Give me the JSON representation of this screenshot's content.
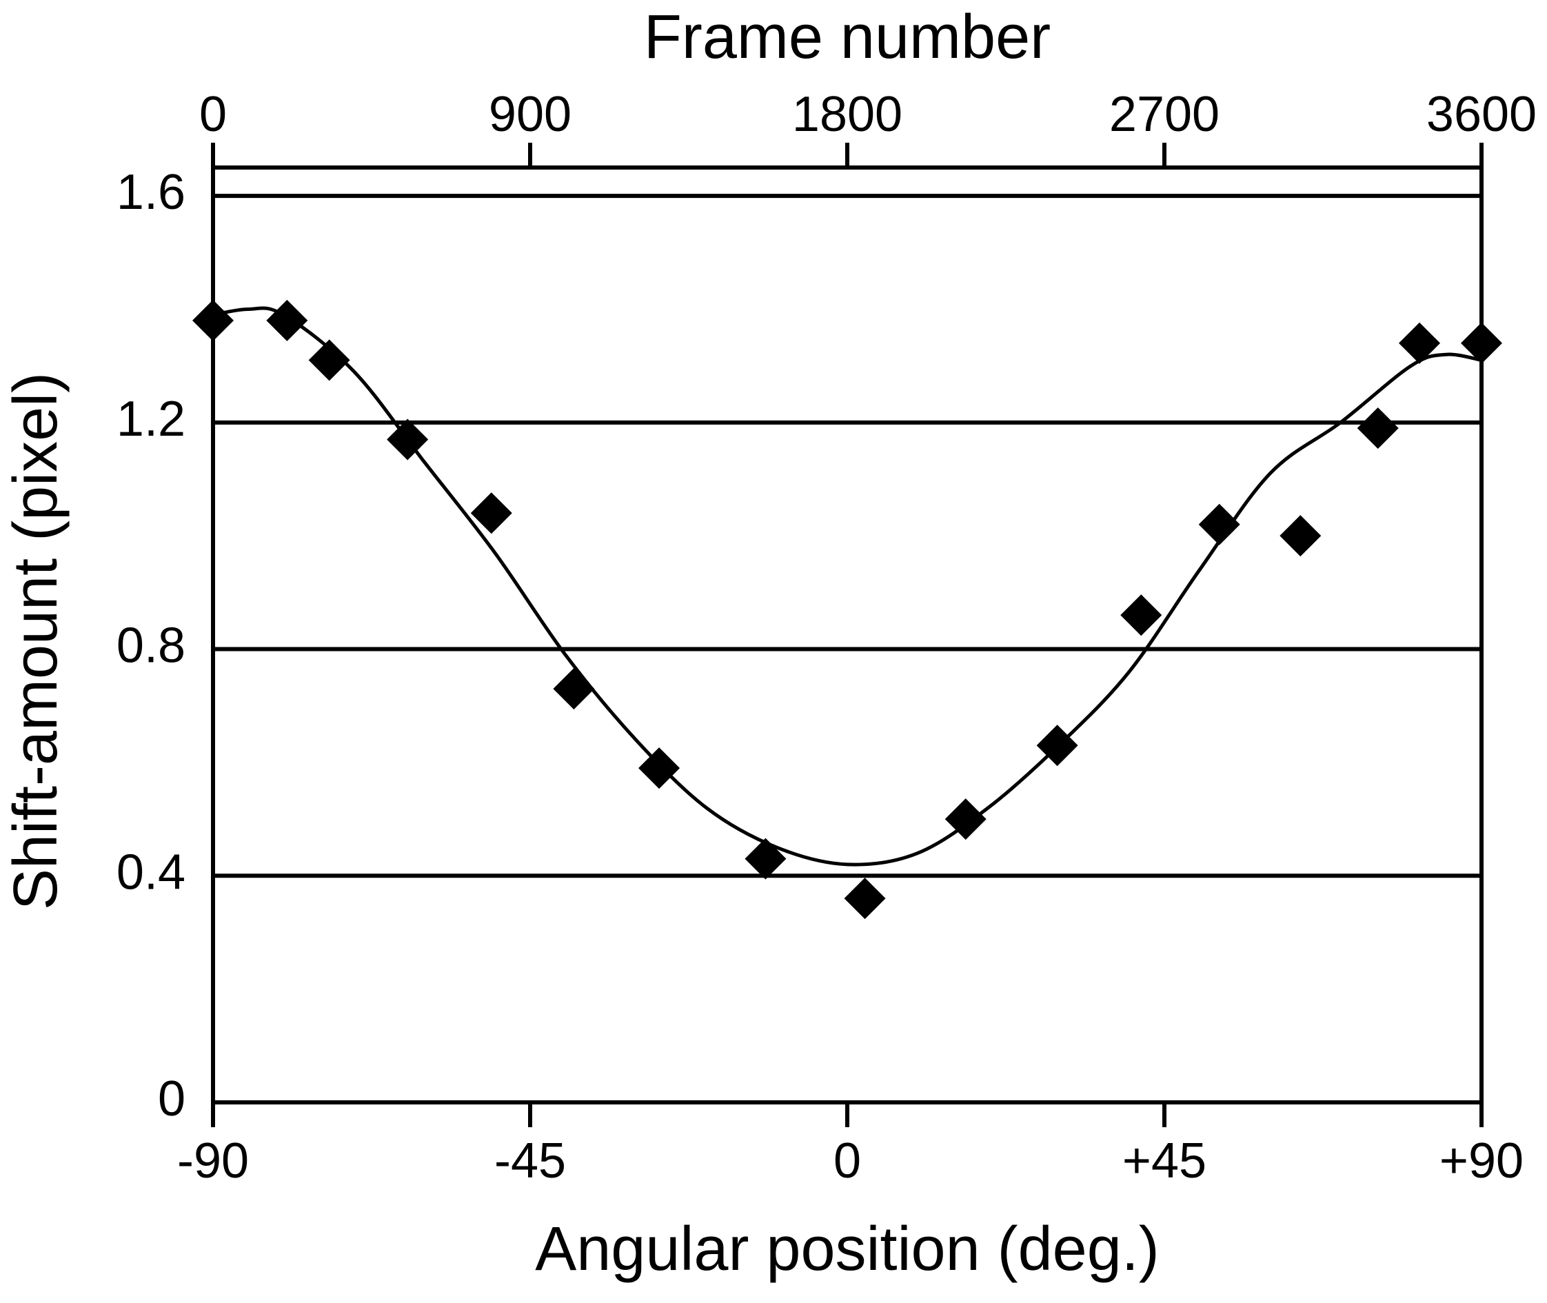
{
  "chart_data": {
    "type": "scatter",
    "x_label": "Angular position (deg.)",
    "y_label": "Shift-amount (pixel)",
    "x2_label": "Frame number",
    "xlim": [
      -90,
      90
    ],
    "xticks": [
      -90,
      -45,
      0,
      {
        "value": 45,
        "label": "+45"
      },
      {
        "value": 90,
        "label": "+90"
      }
    ],
    "x2lim": [
      0,
      3600
    ],
    "x2ticks": [
      0,
      900,
      1800,
      2700,
      3600
    ],
    "ylim": [
      0,
      1.65
    ],
    "yticks": [
      0,
      0.4,
      0.8,
      1.2,
      1.6
    ],
    "grid": true,
    "color": "#000000",
    "x": [
      -90,
      -79.5,
      -73.5,
      -62.4,
      -50.5,
      -38.8,
      -26.7,
      -11.6,
      2.5,
      16.8,
      29.8,
      41.7,
      52.8,
      64.3,
      75.3,
      81.2,
      90
    ],
    "values": [
      1.38,
      1.38,
      1.31,
      1.17,
      1.04,
      0.73,
      0.59,
      0.43,
      0.36,
      0.5,
      0.63,
      0.86,
      1.02,
      1.0,
      1.19,
      1.34,
      1.34
    ],
    "fit": {
      "x": [
        -90,
        -85,
        -80,
        -70,
        -60,
        -50,
        -40,
        -30,
        -20,
        -10,
        0,
        10,
        20,
        30,
        40,
        50,
        60,
        70,
        80,
        85,
        90
      ],
      "values": [
        1.39,
        1.4,
        1.39,
        1.29,
        1.13,
        0.97,
        0.79,
        0.64,
        0.52,
        0.45,
        0.42,
        0.44,
        0.52,
        0.63,
        0.76,
        0.94,
        1.11,
        1.2,
        1.3,
        1.32,
        1.31
      ]
    }
  }
}
